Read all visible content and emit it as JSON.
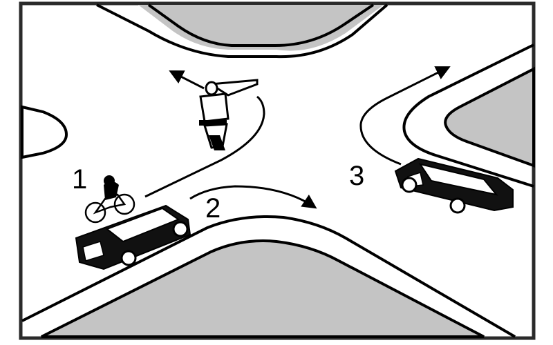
{
  "diagram": {
    "labels": {
      "cyclist": "1",
      "car_left": "2",
      "car_right": "3"
    },
    "colors": {
      "road": "#ffffff",
      "block": "#c4c4c4",
      "ink": "#000000",
      "frame": "#2a2a2a"
    },
    "icons": {
      "officer": "traffic-officer-icon",
      "cyclist": "cyclist-icon",
      "car": "car-icon",
      "arrow": "arrow-icon"
    }
  }
}
